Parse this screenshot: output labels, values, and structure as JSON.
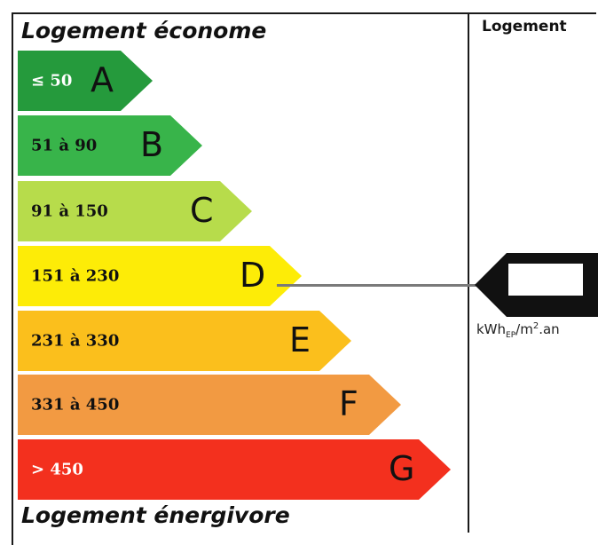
{
  "header": {
    "top_label": "Logement économe",
    "bottom_label": "Logement énergivore",
    "column_label": "Logement"
  },
  "classes": [
    {
      "letter": "A",
      "range": "≤ 50",
      "color": "#259a3c",
      "text_color": "#ffffff"
    },
    {
      "letter": "B",
      "range": "51 à 90",
      "color": "#38b44a",
      "text_color": "#111111"
    },
    {
      "letter": "C",
      "range": "91 à 150",
      "color": "#b7dc4b",
      "text_color": "#111111"
    },
    {
      "letter": "D",
      "range": "151 à 230",
      "color": "#fdec07",
      "text_color": "#111111"
    },
    {
      "letter": "E",
      "range": "231 à 330",
      "color": "#fbbf1c",
      "text_color": "#111111"
    },
    {
      "letter": "F",
      "range": "331 à 450",
      "color": "#f29a42",
      "text_color": "#111111"
    },
    {
      "letter": "G",
      "range": "> 450",
      "color": "#f3301e",
      "text_color": "#ffffff"
    }
  ],
  "indicator": {
    "class": "D",
    "value": "",
    "unit_main": "kWh",
    "unit_sub": "EP",
    "unit_rest": "/m",
    "unit_sup": "2",
    "unit_end": ".an"
  }
}
